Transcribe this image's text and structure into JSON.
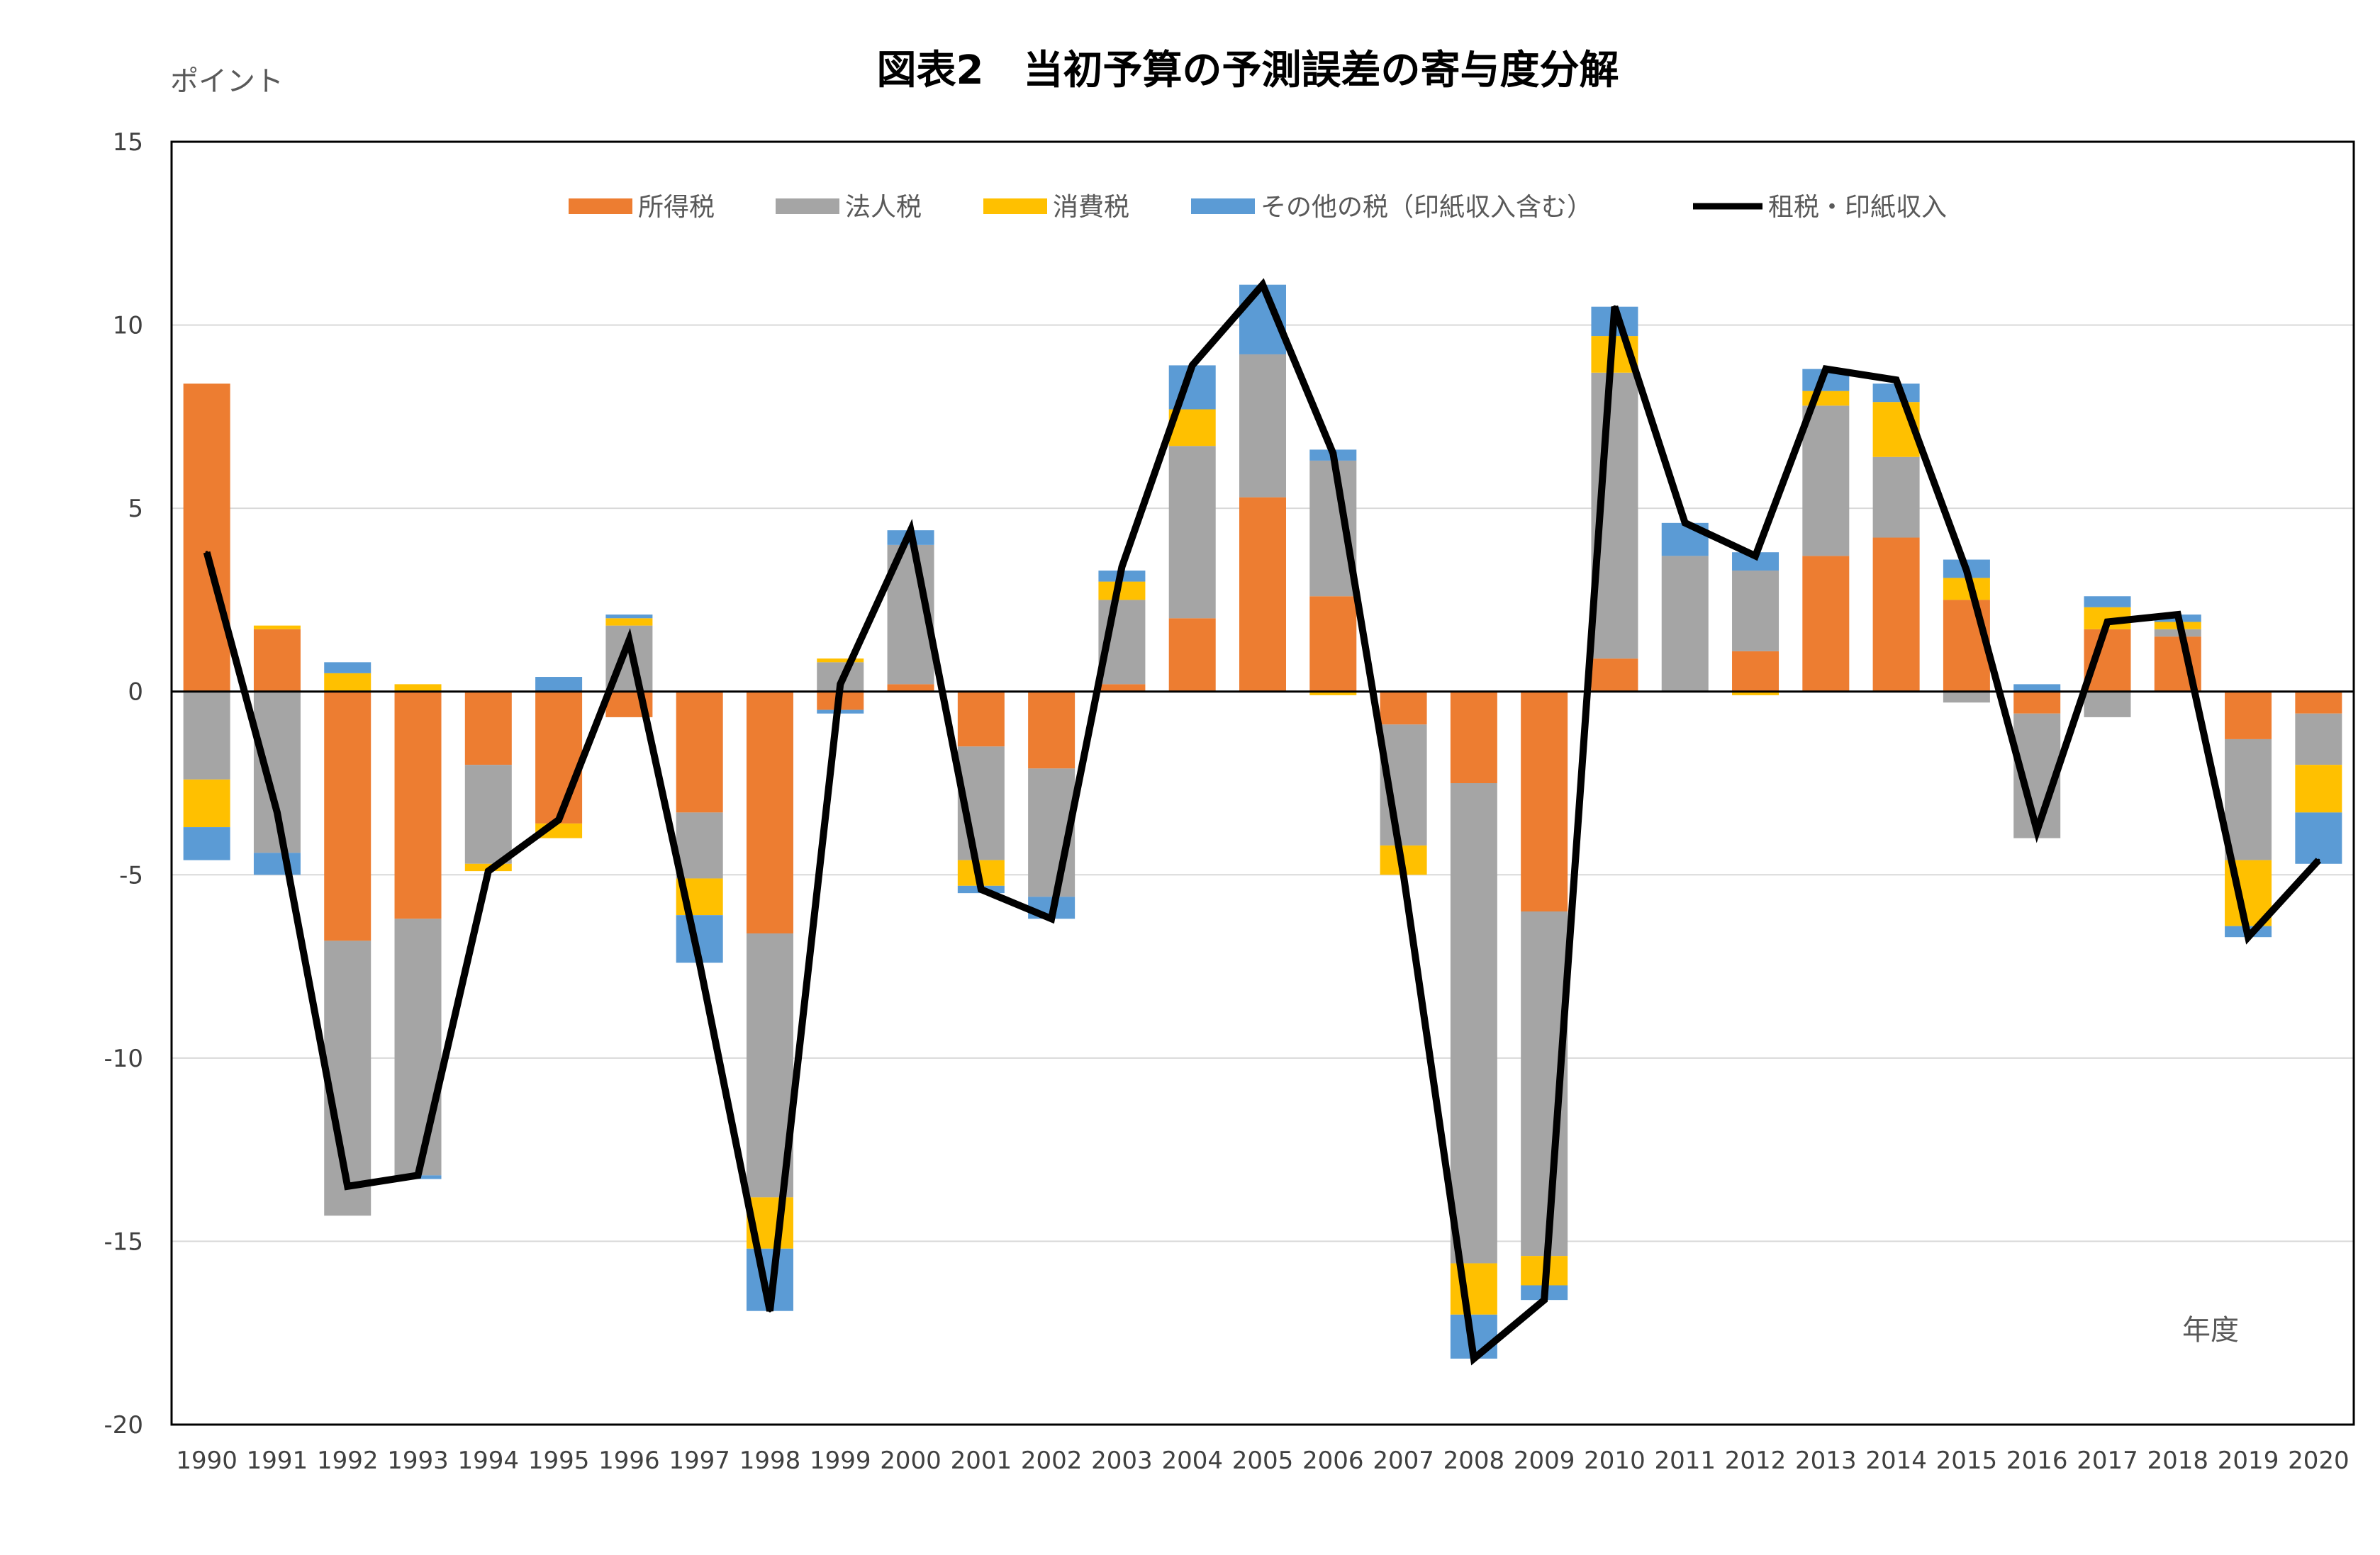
{
  "chart_data": {
    "type": "bar",
    "stacked": true,
    "title": "図表2　当初予算の予測誤差の寄与度分解",
    "ylabel": "ポイント",
    "xlabel": "年度",
    "ylim": [
      -20,
      15
    ],
    "yticks": [
      15,
      10,
      5,
      0,
      -5,
      -10,
      -15,
      -20
    ],
    "grid": true,
    "legend_position": "top",
    "categories": [
      "1990",
      "1991",
      "1992",
      "1993",
      "1994",
      "1995",
      "1996",
      "1997",
      "1998",
      "1999",
      "2000",
      "2001",
      "2002",
      "2003",
      "2004",
      "2005",
      "2006",
      "2007",
      "2008",
      "2009",
      "2010",
      "2011",
      "2012",
      "2013",
      "2014",
      "2015",
      "2016",
      "2017",
      "2018",
      "2019",
      "2020"
    ],
    "series": [
      {
        "name": "所得税",
        "type": "bar",
        "color": "#ED7D31",
        "values": [
          8.4,
          1.7,
          -6.8,
          -6.2,
          -2.0,
          -3.6,
          -0.7,
          -3.3,
          -6.6,
          -0.5,
          0.2,
          -1.5,
          -2.1,
          0.2,
          2.0,
          5.3,
          2.6,
          -0.9,
          -2.5,
          -6.0,
          0.9,
          0.0,
          1.1,
          3.7,
          4.2,
          2.5,
          -0.6,
          1.7,
          1.5,
          -1.3,
          -0.6
        ]
      },
      {
        "name": "法人税",
        "type": "bar",
        "color": "#A5A5A5",
        "values": [
          -2.4,
          -4.4,
          -7.5,
          -7.0,
          -2.7,
          0.0,
          1.8,
          -1.8,
          -7.2,
          0.8,
          3.8,
          -3.1,
          -3.5,
          2.3,
          4.7,
          3.9,
          3.7,
          -3.3,
          -13.1,
          -9.4,
          7.8,
          3.7,
          2.2,
          4.1,
          2.2,
          -0.3,
          -3.4,
          -0.7,
          0.2,
          -3.3,
          -1.4
        ]
      },
      {
        "name": "消費税",
        "type": "bar",
        "color": "#FFC000",
        "values": [
          -1.3,
          0.1,
          0.5,
          0.2,
          -0.2,
          -0.4,
          0.2,
          -1.0,
          -1.4,
          0.1,
          0.0,
          -0.7,
          0.0,
          0.5,
          1.0,
          0.0,
          -0.1,
          -0.8,
          -1.4,
          -0.8,
          1.0,
          0.0,
          -0.1,
          0.4,
          1.5,
          0.6,
          0.0,
          0.6,
          0.2,
          -1.8,
          -1.3
        ]
      },
      {
        "name": "その他の税（印紙収入含む）",
        "type": "bar",
        "color": "#5B9BD5",
        "values": [
          -0.9,
          -0.6,
          0.3,
          -0.1,
          0.0,
          0.4,
          0.1,
          -1.3,
          -1.7,
          -0.1,
          0.4,
          -0.2,
          -0.6,
          0.3,
          1.2,
          1.9,
          0.3,
          0.0,
          -1.2,
          -0.4,
          0.8,
          0.9,
          0.5,
          0.6,
          0.5,
          0.5,
          0.2,
          0.3,
          0.2,
          -0.3,
          -1.4
        ]
      },
      {
        "name": "租税・印紙収入",
        "type": "line",
        "color": "#000000",
        "values": [
          3.8,
          -3.3,
          -13.5,
          -13.2,
          -4.9,
          -3.5,
          1.4,
          -7.4,
          -16.9,
          0.2,
          4.4,
          -5.4,
          -6.2,
          3.4,
          8.9,
          11.1,
          6.5,
          -5.0,
          -18.2,
          -16.6,
          10.5,
          4.6,
          3.7,
          8.8,
          8.5,
          3.3,
          -3.8,
          1.9,
          2.1,
          -6.7,
          -4.6
        ]
      }
    ]
  }
}
